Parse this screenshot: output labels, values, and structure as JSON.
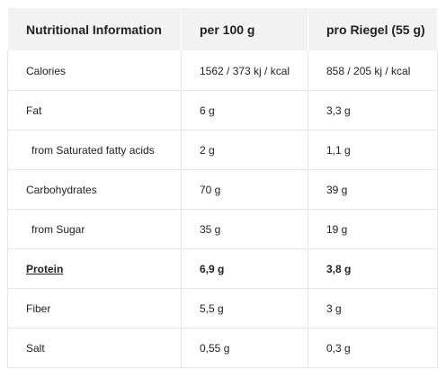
{
  "table": {
    "headers": [
      "Nutritional Information",
      "per 100 g",
      "pro Riegel (55 g)"
    ],
    "rows": [
      {
        "label": "Calories",
        "per100": "1562 / 373 kj / kcal",
        "perBar": "858 / 205 kj / kcal"
      },
      {
        "label": "Fat",
        "per100": "6 g",
        "perBar": "3,3 g"
      },
      {
        "label": "from Saturated fatty acids",
        "per100": "2 g",
        "perBar": "1,1 g"
      },
      {
        "label": "Carbohydrates",
        "per100": "70 g",
        "perBar": "39 g"
      },
      {
        "label": "from Sugar",
        "per100": "35 g",
        "perBar": "19 g"
      },
      {
        "label": "Protein",
        "per100": "6,9 g",
        "perBar": "3,8 g"
      },
      {
        "label": "Fiber",
        "per100": "5,5 g",
        "perBar": "3 g"
      },
      {
        "label": "Salt",
        "per100": "0,55 g",
        "perBar": "0,3 g"
      }
    ]
  },
  "colors": {
    "header_bg": "#f2f2f2",
    "border": "#e6e6e6",
    "text": "#222222"
  }
}
